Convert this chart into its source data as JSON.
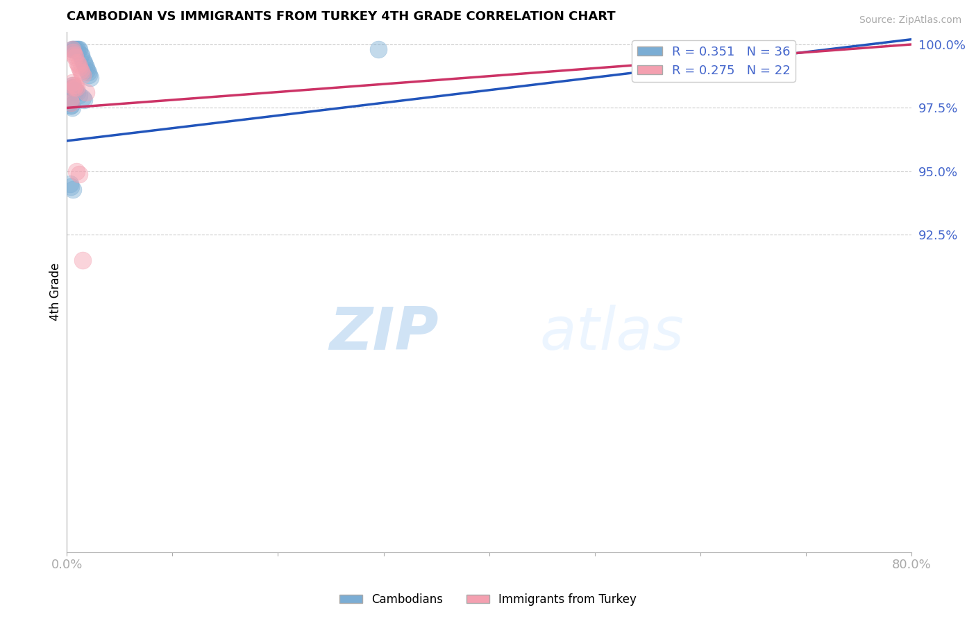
{
  "title": "CAMBODIAN VS IMMIGRANTS FROM TURKEY 4TH GRADE CORRELATION CHART",
  "source": "Source: ZipAtlas.com",
  "ylabel": "4th Grade",
  "xlim": [
    0.0,
    0.8
  ],
  "ylim": [
    0.8,
    1.005
  ],
  "xticks": [
    0.0,
    0.1,
    0.2,
    0.3,
    0.4,
    0.5,
    0.6,
    0.7,
    0.8
  ],
  "xticklabels": [
    "0.0%",
    "",
    "",
    "",
    "",
    "",
    "",
    "",
    "80.0%"
  ],
  "yticks": [
    0.925,
    0.95,
    0.975,
    1.0
  ],
  "yticklabels": [
    "92.5%",
    "95.0%",
    "97.5%",
    "100.0%"
  ],
  "blue_R": 0.351,
  "blue_N": 36,
  "pink_R": 0.275,
  "pink_N": 22,
  "blue_color": "#7BADD4",
  "pink_color": "#F4A0B0",
  "blue_line_color": "#2255BB",
  "pink_line_color": "#CC3366",
  "grid_color": "#CCCCCC",
  "watermark_zip": "ZIP",
  "watermark_atlas": "atlas",
  "blue_dots_x": [
    0.003,
    0.004,
    0.005,
    0.005,
    0.006,
    0.006,
    0.007,
    0.008,
    0.008,
    0.009,
    0.01,
    0.011,
    0.012,
    0.013,
    0.014,
    0.015,
    0.016,
    0.017,
    0.018,
    0.019,
    0.02,
    0.021,
    0.022,
    0.005,
    0.006,
    0.008,
    0.01,
    0.012,
    0.015,
    0.016,
    0.003,
    0.004,
    0.295,
    0.003,
    0.004,
    0.006
  ],
  "blue_dots_y": [
    0.977,
    0.976,
    0.998,
    0.975,
    0.998,
    0.983,
    0.998,
    0.998,
    0.982,
    0.998,
    0.998,
    0.998,
    0.998,
    0.996,
    0.996,
    0.994,
    0.993,
    0.992,
    0.991,
    0.99,
    0.989,
    0.988,
    0.987,
    0.984,
    0.983,
    0.981,
    0.981,
    0.98,
    0.979,
    0.978,
    0.977,
    0.976,
    0.998,
    0.945,
    0.944,
    0.943
  ],
  "pink_dots_x": [
    0.003,
    0.004,
    0.005,
    0.005,
    0.006,
    0.007,
    0.008,
    0.008,
    0.009,
    0.01,
    0.011,
    0.012,
    0.013,
    0.014,
    0.015,
    0.006,
    0.007,
    0.018,
    0.62,
    0.009,
    0.012,
    0.015
  ],
  "pink_dots_y": [
    0.978,
    0.977,
    0.998,
    0.985,
    0.997,
    0.996,
    0.995,
    0.984,
    0.983,
    0.993,
    0.992,
    0.991,
    0.99,
    0.989,
    0.988,
    0.984,
    0.983,
    0.981,
    0.998,
    0.95,
    0.949,
    0.915
  ],
  "blue_line_x": [
    0.0,
    0.8
  ],
  "blue_line_y": [
    0.962,
    1.002
  ],
  "pink_line_x": [
    0.0,
    0.8
  ],
  "pink_line_y": [
    0.975,
    1.0
  ]
}
